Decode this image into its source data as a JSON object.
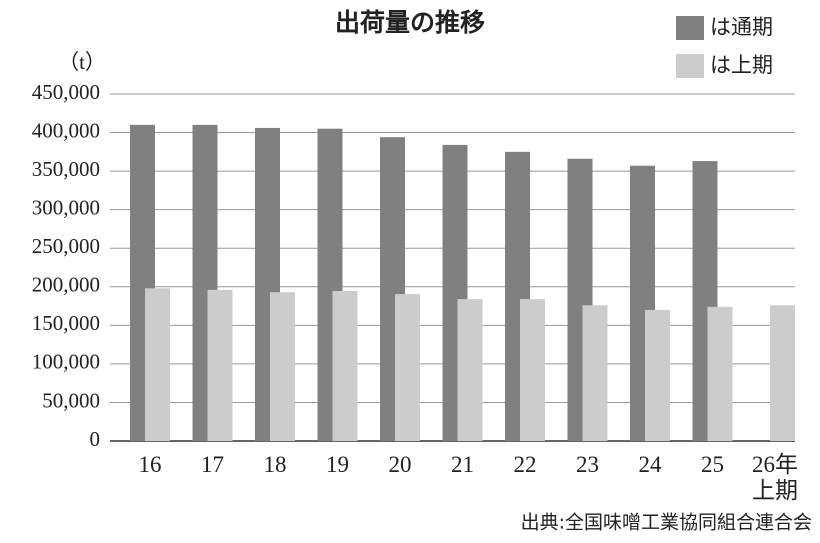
{
  "chart_data": {
    "type": "bar",
    "title": "出荷量の推移",
    "y_unit": "（t）",
    "source": "出典:全国味噌工業協同組合連合会",
    "categories": [
      "16",
      "17",
      "18",
      "19",
      "20",
      "21",
      "22",
      "23",
      "24",
      "25",
      "26年\n上期"
    ],
    "series": [
      {
        "name": "は通期",
        "color": "#808080",
        "values": [
          410000,
          410000,
          406000,
          405000,
          394000,
          384000,
          375000,
          366000,
          357000,
          363000,
          null
        ]
      },
      {
        "name": "は上期",
        "color": "#cccccc",
        "values": [
          198000,
          196000,
          193000,
          194500,
          190500,
          184000,
          184000,
          176000,
          170000,
          174000,
          176000
        ]
      }
    ],
    "ylim": [
      0,
      450000
    ],
    "yticks": [
      0,
      {
        "value": 50000,
        "label": "50,000"
      },
      {
        "value": 100000,
        "label": "100,000"
      },
      {
        "value": 150000,
        "label": "150,000"
      },
      {
        "value": 200000,
        "label": "200,000"
      },
      {
        "value": 250000,
        "label": "250,000"
      },
      {
        "value": 300000,
        "label": "300,000"
      },
      {
        "value": 350000,
        "label": "350,000"
      },
      {
        "value": 400000,
        "label": "400,000"
      },
      {
        "value": 450000,
        "label": "450,000"
      }
    ],
    "grid": true,
    "legend": "top-right"
  }
}
